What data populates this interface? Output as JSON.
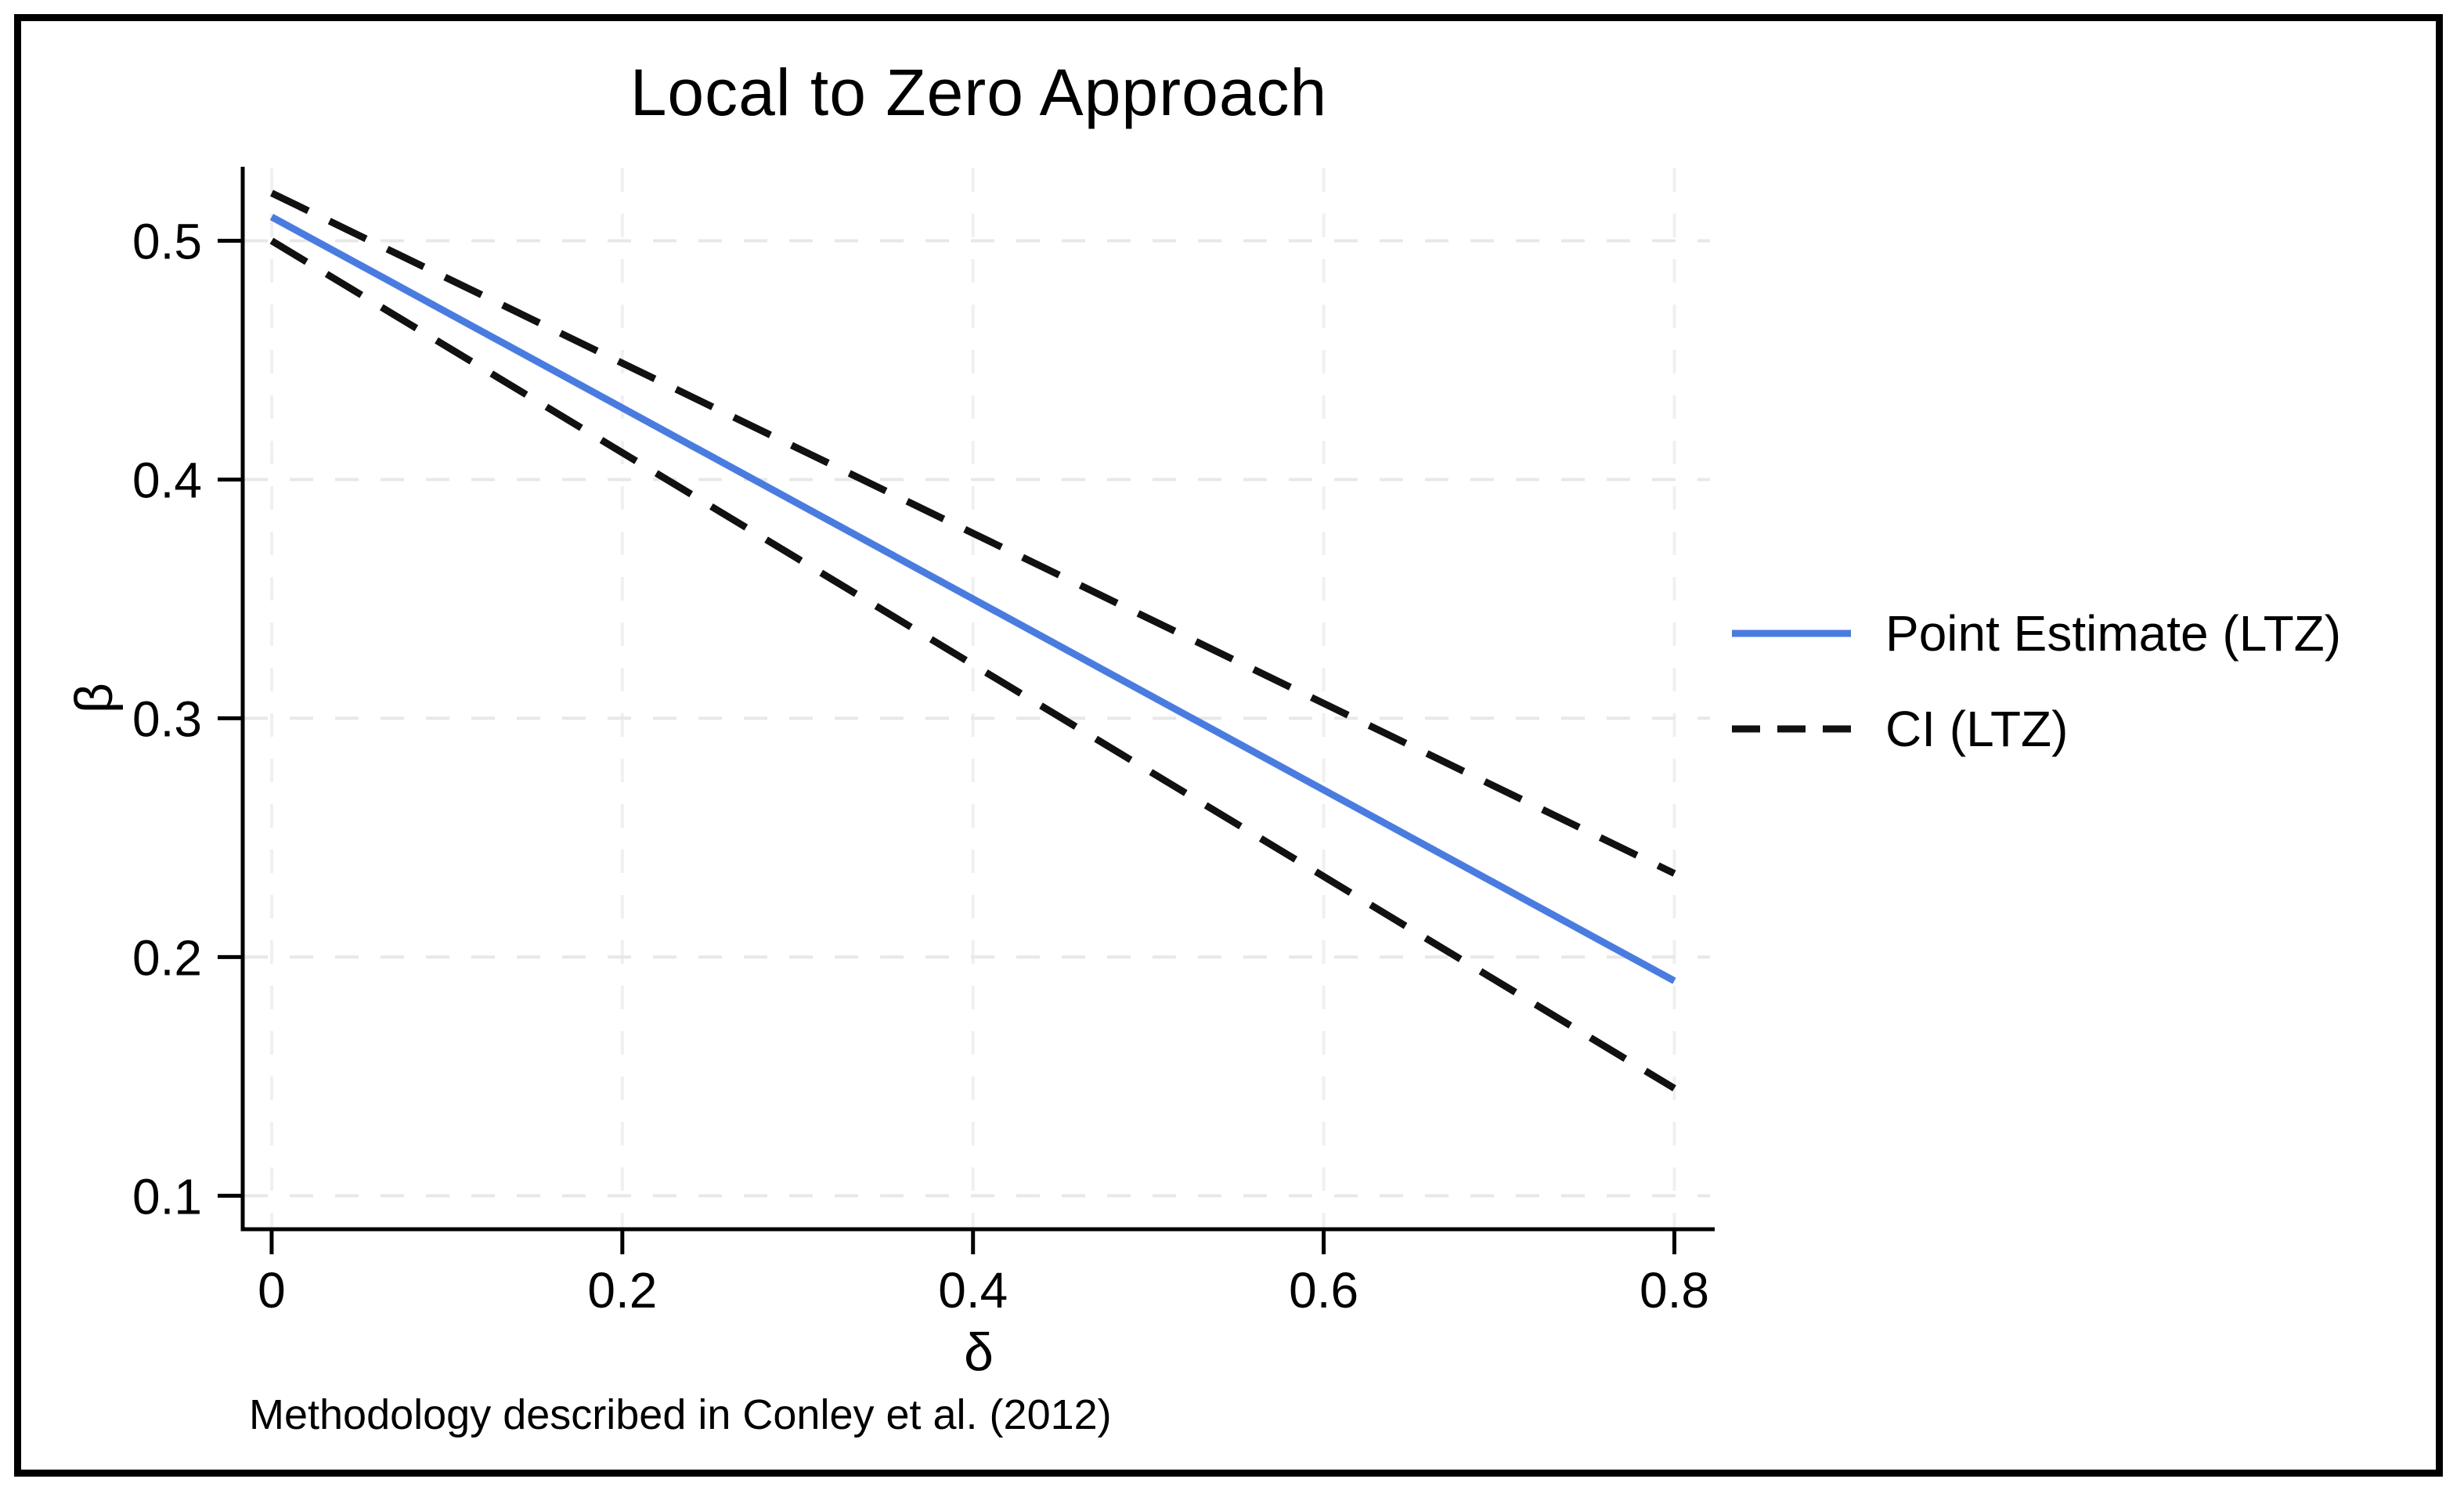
{
  "page": {
    "background_color": "#ffffff",
    "frame_color": "#000000"
  },
  "chart_data": {
    "type": "line",
    "title": "Local to Zero Approach",
    "xlabel": "δ",
    "ylabel": "β",
    "note": "Methodology described in Conley et al. (2012)",
    "xlim": [
      -0.0165,
      0.823
    ],
    "ylim": [
      0.086,
      0.531
    ],
    "x_tick_values": [
      0,
      0.2,
      0.4,
      0.6,
      0.8
    ],
    "x_tick_labels": [
      "0",
      "0.2",
      "0.4",
      "0.6",
      "0.8"
    ],
    "y_tick_values": [
      0.1,
      0.2,
      0.3,
      0.4,
      0.5
    ],
    "y_tick_labels": [
      "0.1",
      "0.2",
      "0.3",
      "0.4",
      "0.5"
    ],
    "grid": true,
    "gridline_color": "#e8e8e8",
    "axis_color": "#000000",
    "legend_position": "right-outside",
    "series": [
      {
        "name": "Point Estimate (LTZ)",
        "role": "point-estimate",
        "style": "solid",
        "color": "#4a7ce0",
        "x": [
          0,
          0.8
        ],
        "y": [
          0.51,
          0.19
        ]
      },
      {
        "name": "CI (LTZ)",
        "role": "ci-upper",
        "style": "dashed",
        "color": "#111111",
        "x": [
          0,
          0.8
        ],
        "y": [
          0.52,
          0.235
        ]
      },
      {
        "name": "CI (LTZ)",
        "role": "ci-lower",
        "style": "dashed",
        "color": "#111111",
        "x": [
          0,
          0.8
        ],
        "y": [
          0.5,
          0.145
        ]
      }
    ],
    "legend": [
      {
        "label": "Point Estimate (LTZ)",
        "style": "solid",
        "color": "#4a7ce0"
      },
      {
        "label": "CI (LTZ)",
        "style": "dashed",
        "color": "#111111"
      }
    ]
  }
}
